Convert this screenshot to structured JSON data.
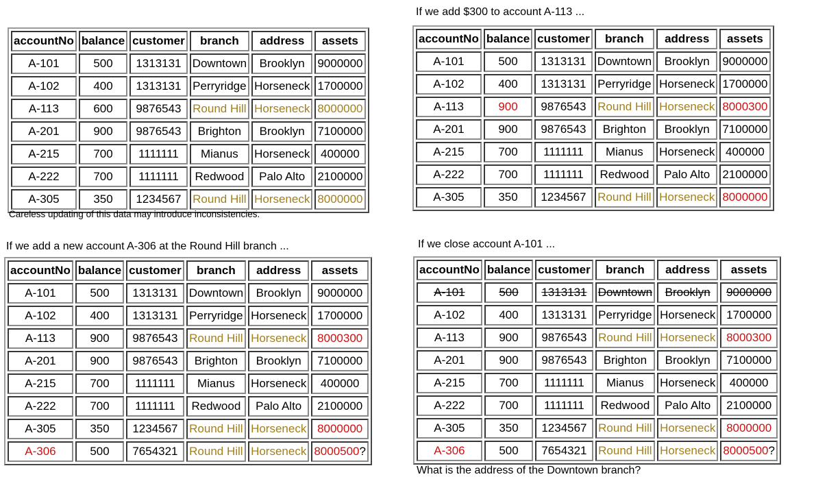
{
  "headers": [
    "accountNo",
    "balance",
    "customer",
    "branch",
    "address",
    "assets"
  ],
  "panels": [
    {
      "id": "original",
      "caption_above": "",
      "caption_below": "Careless updating of this data may introduce inconsistencies.",
      "rows": [
        {
          "cells": [
            "A-101",
            "500",
            "1313131",
            "Downtown",
            "Brooklyn",
            "9000000"
          ],
          "styles": [
            "",
            "",
            "",
            "",
            "",
            ""
          ]
        },
        {
          "cells": [
            "A-102",
            "400",
            "1313131",
            "Perryridge",
            "Horseneck",
            "1700000"
          ],
          "styles": [
            "",
            "",
            "",
            "",
            "",
            ""
          ]
        },
        {
          "cells": [
            "A-113",
            "600",
            "9876543",
            "Round Hill",
            "Horseneck",
            "8000000"
          ],
          "styles": [
            "",
            "",
            "",
            "gold",
            "gold",
            "gold"
          ]
        },
        {
          "cells": [
            "A-201",
            "900",
            "9876543",
            "Brighton",
            "Brooklyn",
            "7100000"
          ],
          "styles": [
            "",
            "",
            "",
            "",
            "",
            ""
          ]
        },
        {
          "cells": [
            "A-215",
            "700",
            "1111111",
            "Mianus",
            "Horseneck",
            "400000"
          ],
          "styles": [
            "",
            "",
            "",
            "",
            "",
            ""
          ]
        },
        {
          "cells": [
            "A-222",
            "700",
            "1111111",
            "Redwood",
            "Palo Alto",
            "2100000"
          ],
          "styles": [
            "",
            "",
            "",
            "",
            "",
            ""
          ]
        },
        {
          "cells": [
            "A-305",
            "350",
            "1234567",
            "Round Hill",
            "Horseneck",
            "8000000"
          ],
          "styles": [
            "",
            "",
            "",
            "gold",
            "gold",
            "gold"
          ]
        }
      ]
    },
    {
      "id": "add300",
      "caption_above": "If we add $300 to account A-113 ...",
      "caption_below": "",
      "rows": [
        {
          "cells": [
            "A-101",
            "500",
            "1313131",
            "Downtown",
            "Brooklyn",
            "9000000"
          ],
          "styles": [
            "",
            "",
            "",
            "",
            "",
            ""
          ]
        },
        {
          "cells": [
            "A-102",
            "400",
            "1313131",
            "Perryridge",
            "Horseneck",
            "1700000"
          ],
          "styles": [
            "",
            "",
            "",
            "",
            "",
            ""
          ]
        },
        {
          "cells": [
            "A-113",
            "900",
            "9876543",
            "Round Hill",
            "Horseneck",
            "8000300"
          ],
          "styles": [
            "",
            "red",
            "",
            "gold",
            "gold",
            "red"
          ]
        },
        {
          "cells": [
            "A-201",
            "900",
            "9876543",
            "Brighton",
            "Brooklyn",
            "7100000"
          ],
          "styles": [
            "",
            "",
            "",
            "",
            "",
            ""
          ]
        },
        {
          "cells": [
            "A-215",
            "700",
            "1111111",
            "Mianus",
            "Horseneck",
            "400000"
          ],
          "styles": [
            "",
            "",
            "",
            "",
            "",
            ""
          ]
        },
        {
          "cells": [
            "A-222",
            "700",
            "1111111",
            "Redwood",
            "Palo Alto",
            "2100000"
          ],
          "styles": [
            "",
            "",
            "",
            "",
            "",
            ""
          ]
        },
        {
          "cells": [
            "A-305",
            "350",
            "1234567",
            "Round Hill",
            "Horseneck",
            "8000000"
          ],
          "styles": [
            "",
            "",
            "",
            "gold",
            "gold",
            "red"
          ]
        }
      ]
    },
    {
      "id": "add-account",
      "caption_above": "If we add a new account A-306 at the Round Hill branch ...",
      "caption_below": "",
      "rows": [
        {
          "cells": [
            "A-101",
            "500",
            "1313131",
            "Downtown",
            "Brooklyn",
            "9000000"
          ],
          "styles": [
            "",
            "",
            "",
            "",
            "",
            ""
          ]
        },
        {
          "cells": [
            "A-102",
            "400",
            "1313131",
            "Perryridge",
            "Horseneck",
            "1700000"
          ],
          "styles": [
            "",
            "",
            "",
            "",
            "",
            ""
          ]
        },
        {
          "cells": [
            "A-113",
            "900",
            "9876543",
            "Round Hill",
            "Horseneck",
            "8000300"
          ],
          "styles": [
            "",
            "",
            "",
            "gold",
            "gold",
            "red"
          ]
        },
        {
          "cells": [
            "A-201",
            "900",
            "9876543",
            "Brighton",
            "Brooklyn",
            "7100000"
          ],
          "styles": [
            "",
            "",
            "",
            "",
            "",
            ""
          ]
        },
        {
          "cells": [
            "A-215",
            "700",
            "1111111",
            "Mianus",
            "Horseneck",
            "400000"
          ],
          "styles": [
            "",
            "",
            "",
            "",
            "",
            ""
          ]
        },
        {
          "cells": [
            "A-222",
            "700",
            "1111111",
            "Redwood",
            "Palo Alto",
            "2100000"
          ],
          "styles": [
            "",
            "",
            "",
            "",
            "",
            ""
          ]
        },
        {
          "cells": [
            "A-305",
            "350",
            "1234567",
            "Round Hill",
            "Horseneck",
            "8000000"
          ],
          "styles": [
            "",
            "",
            "",
            "gold",
            "gold",
            "red"
          ]
        },
        {
          "cells": [
            "A-306",
            "500",
            "7654321",
            "Round Hill",
            "Horseneck",
            "8000500"
          ],
          "styles": [
            "red",
            "",
            "",
            "gold",
            "gold",
            "red"
          ],
          "suffix": "?"
        }
      ]
    },
    {
      "id": "close-account",
      "caption_above": "If we close account A-101 ...",
      "caption_below": "What is the address of the Downtown branch?",
      "rows": [
        {
          "cells": [
            "A-101",
            "500",
            "1313131",
            "Downtown",
            "Brooklyn",
            "9000000"
          ],
          "styles": [
            "strike",
            "strike",
            "strike",
            "strike",
            "strike",
            "strike"
          ]
        },
        {
          "cells": [
            "A-102",
            "400",
            "1313131",
            "Perryridge",
            "Horseneck",
            "1700000"
          ],
          "styles": [
            "",
            "",
            "",
            "",
            "",
            ""
          ]
        },
        {
          "cells": [
            "A-113",
            "900",
            "9876543",
            "Round Hill",
            "Horseneck",
            "8000300"
          ],
          "styles": [
            "",
            "",
            "",
            "gold",
            "gold",
            "red"
          ]
        },
        {
          "cells": [
            "A-201",
            "900",
            "9876543",
            "Brighton",
            "Brooklyn",
            "7100000"
          ],
          "styles": [
            "",
            "",
            "",
            "",
            "",
            ""
          ]
        },
        {
          "cells": [
            "A-215",
            "700",
            "1111111",
            "Mianus",
            "Horseneck",
            "400000"
          ],
          "styles": [
            "",
            "",
            "",
            "",
            "",
            ""
          ]
        },
        {
          "cells": [
            "A-222",
            "700",
            "1111111",
            "Redwood",
            "Palo Alto",
            "2100000"
          ],
          "styles": [
            "",
            "",
            "",
            "",
            "",
            ""
          ]
        },
        {
          "cells": [
            "A-305",
            "350",
            "1234567",
            "Round Hill",
            "Horseneck",
            "8000000"
          ],
          "styles": [
            "",
            "",
            "",
            "gold",
            "gold",
            "red"
          ]
        },
        {
          "cells": [
            "A-306",
            "500",
            "7654321",
            "Round Hill",
            "Horseneck",
            "8000500"
          ],
          "styles": [
            "red",
            "",
            "",
            "gold",
            "gold",
            "red"
          ],
          "suffix": "?"
        }
      ]
    }
  ],
  "colors": {
    "highlight_gold": "#a3801c",
    "highlight_red": "#d01010"
  }
}
